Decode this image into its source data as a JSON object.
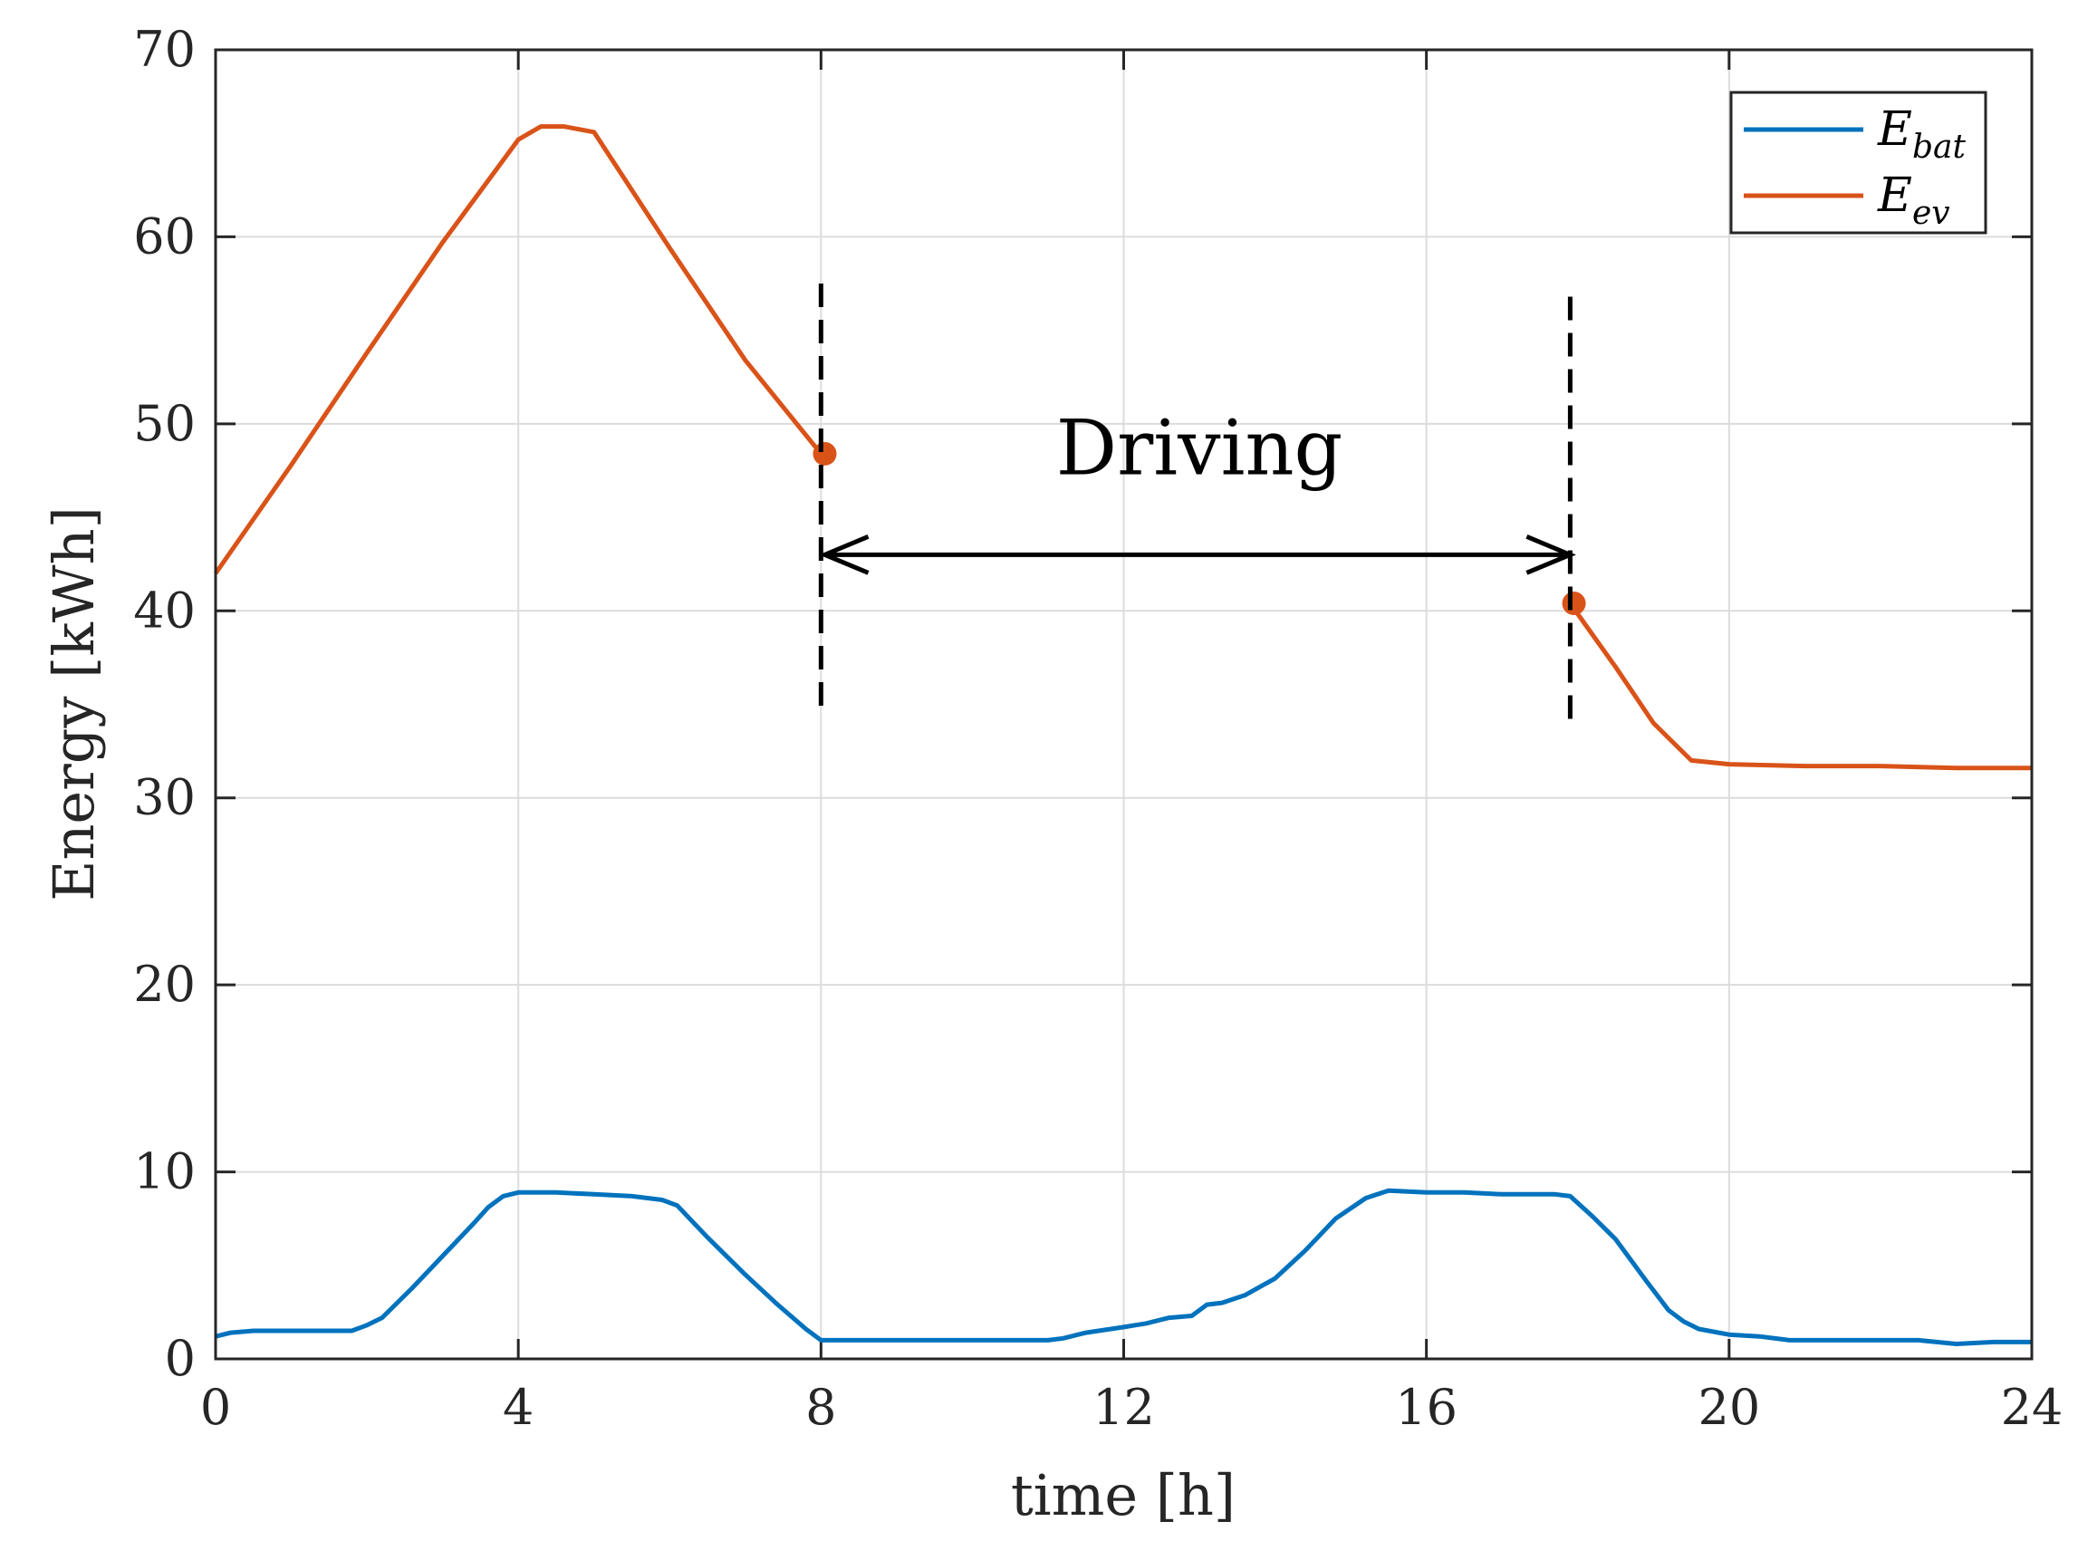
{
  "chart_data": {
    "type": "line",
    "title": "",
    "xlabel": "time [h]",
    "ylabel": "Energy [kWh]",
    "xlim": [
      0,
      24
    ],
    "ylim": [
      0,
      70
    ],
    "xticks": [
      0,
      4,
      8,
      12,
      16,
      20,
      24
    ],
    "yticks": [
      0,
      10,
      20,
      30,
      40,
      50,
      60,
      70
    ],
    "xtick_labels": [
      "0",
      "4",
      "8",
      "12",
      "16",
      "20",
      "24"
    ],
    "ytick_labels": [
      "0",
      "10",
      "20",
      "30",
      "40",
      "50",
      "60",
      "70"
    ],
    "grid": true,
    "legend_position": "top-right",
    "series": [
      {
        "name": "E_bat",
        "label_main": "E",
        "label_sub": "bat",
        "color": "#0072BD",
        "x": [
          0,
          0.2,
          0.5,
          1.0,
          1.5,
          1.8,
          2.0,
          2.2,
          2.6,
          3.0,
          3.4,
          3.6,
          3.8,
          4.0,
          4.5,
          5.0,
          5.5,
          5.9,
          6.1,
          6.5,
          7.0,
          7.4,
          7.8,
          8.0,
          9.0,
          10.0,
          11.0,
          11.2,
          11.5,
          12.0,
          12.3,
          12.6,
          12.9,
          13.1,
          13.3,
          13.6,
          14.0,
          14.4,
          14.8,
          15.2,
          15.5,
          16.0,
          16.5,
          17.0,
          17.5,
          17.7,
          17.9,
          18.2,
          18.5,
          18.9,
          19.2,
          19.4,
          19.6,
          20.0,
          20.4,
          20.8,
          21.0,
          22.0,
          22.5,
          23.0,
          23.5,
          24.0
        ],
        "y": [
          1.2,
          1.4,
          1.5,
          1.5,
          1.5,
          1.5,
          1.8,
          2.2,
          3.8,
          5.5,
          7.2,
          8.1,
          8.7,
          8.9,
          8.9,
          8.8,
          8.7,
          8.5,
          8.2,
          6.5,
          4.5,
          3.0,
          1.6,
          1.0,
          1.0,
          1.0,
          1.0,
          1.1,
          1.4,
          1.7,
          1.9,
          2.2,
          2.3,
          2.9,
          3.0,
          3.4,
          4.3,
          5.8,
          7.5,
          8.6,
          9.0,
          8.9,
          8.9,
          8.8,
          8.8,
          8.8,
          8.7,
          7.6,
          6.4,
          4.2,
          2.6,
          2.0,
          1.6,
          1.3,
          1.2,
          1.0,
          1.0,
          1.0,
          1.0,
          0.8,
          0.9,
          0.9
        ]
      },
      {
        "name": "E_ev",
        "label_main": "E",
        "label_sub": "ev",
        "color": "#D95319",
        "segments": [
          {
            "x": [
              0,
              1.0,
              2.0,
              3.0,
              4.0,
              4.3,
              4.6,
              5.0,
              6.0,
              7.0,
              8.0
            ],
            "y": [
              42.0,
              47.8,
              53.8,
              59.7,
              65.2,
              65.9,
              65.9,
              65.6,
              59.4,
              53.4,
              48.4
            ]
          },
          {
            "x": [
              17.9,
              18.5,
              19.0,
              19.5,
              20.0,
              21.0,
              22.0,
              23.0,
              24.0
            ],
            "y": [
              40.4,
              37.0,
              34.0,
              32.0,
              31.8,
              31.7,
              31.7,
              31.6,
              31.6
            ]
          }
        ],
        "markers": [
          {
            "x": 8.05,
            "y": 48.4
          },
          {
            "x": 17.95,
            "y": 40.4
          }
        ]
      }
    ],
    "annotations": {
      "text": "Driving",
      "text_x": 13.0,
      "text_y": 47.3,
      "arrow_from": [
        8.05,
        43.0
      ],
      "arrow_to": [
        17.9,
        43.0
      ],
      "dashed_lines": [
        {
          "x": 8.0,
          "y1": 34.3,
          "y2": 57.5
        },
        {
          "x": 17.9,
          "y1": 33.7,
          "y2": 56.8
        }
      ]
    }
  }
}
